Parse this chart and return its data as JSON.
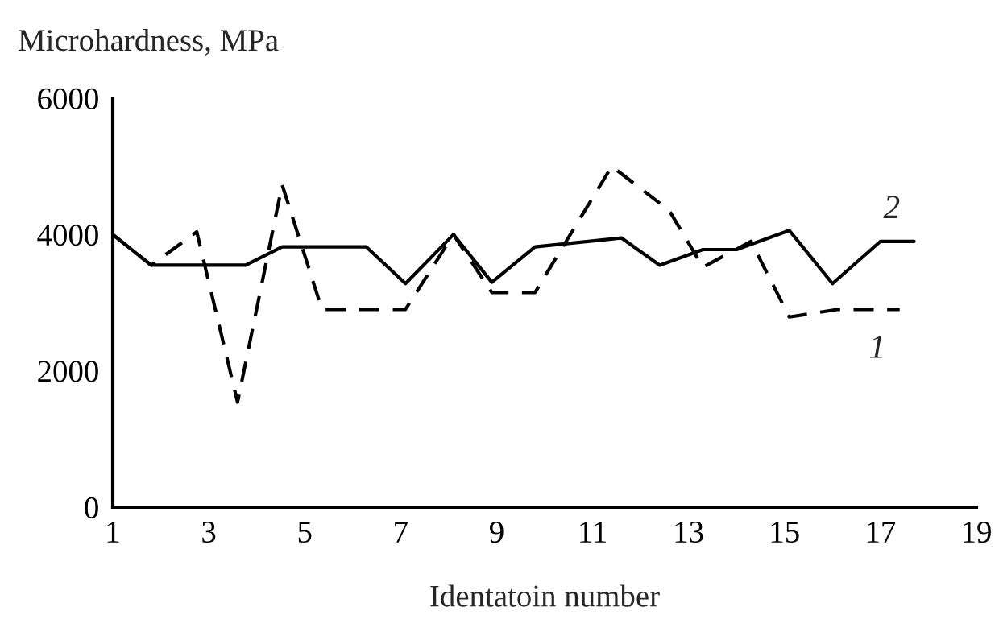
{
  "chart_data": {
    "type": "line",
    "xlabel": "Identatoin number",
    "ylabel": "Microhardness, MPa",
    "xlim": [
      1,
      19
    ],
    "xticks": [
      1,
      3,
      5,
      7,
      9,
      11,
      13,
      15,
      17,
      19
    ],
    "ylim": [
      0,
      6000
    ],
    "yticks": [
      0,
      2000,
      4000,
      6000
    ],
    "grid": false,
    "legend": false,
    "series": [
      {
        "name": "1",
        "color": "#000000",
        "line_style": "dashed",
        "x": [
          1,
          1.8,
          2.75,
          3.6,
          4.53,
          5.36,
          7.1,
          8.1,
          8.9,
          9.8,
          11.4,
          12.6,
          13.3,
          14.3,
          15.1,
          16.1,
          17.4
        ],
        "values": [
          4000,
          3550,
          4040,
          1540,
          4730,
          2900,
          2900,
          4000,
          3150,
          3150,
          5000,
          4350,
          3520,
          3900,
          2790,
          2900,
          2900
        ]
      },
      {
        "name": "2",
        "color": "#000000",
        "line_style": "solid",
        "x": [
          1,
          1.8,
          3.77,
          4.53,
          6.28,
          7.1,
          8.1,
          8.9,
          9.8,
          11.6,
          12.4,
          13.3,
          14.0,
          15.1,
          16.0,
          17.0,
          17.7
        ],
        "values": [
          4000,
          3550,
          3550,
          3820,
          3820,
          3280,
          4000,
          3300,
          3820,
          3950,
          3550,
          3780,
          3780,
          4060,
          3280,
          3900,
          3900
        ]
      }
    ]
  }
}
